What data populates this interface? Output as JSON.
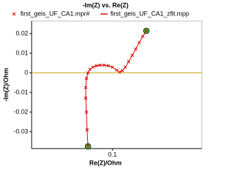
{
  "chart_data": {
    "type": "scatter",
    "title": "-Im(Z) vs. Re(Z)",
    "x_label": "Re(Z)/Ohm",
    "y_label": "-Im(Z)/Ohm",
    "xlim": [
      0.0525,
      0.1525
    ],
    "ylim": [
      -0.0386,
      0.0264
    ],
    "xticks": [
      0.1
    ],
    "yticks": [
      0.02,
      0.01,
      0,
      -0.01,
      -0.02,
      -0.03
    ],
    "zero_line_color": "#c8a000",
    "series": [
      {
        "name": "first_geis_UF_CA1.mpr#",
        "color": "#e00000",
        "marker": "x",
        "x": [
          0.0856,
          0.0851,
          0.0847,
          0.0843,
          0.0843,
          0.0847,
          0.0856,
          0.0868,
          0.0885,
          0.0905,
          0.0926,
          0.0951,
          0.0975,
          0.1,
          0.1025,
          0.1042,
          0.1058,
          0.1075,
          0.1095,
          0.1116,
          0.1137,
          0.1157,
          0.1178,
          0.1199
        ],
        "y": [
          -0.0375,
          -0.029,
          -0.02,
          -0.0129,
          -0.0075,
          -0.0029,
          0,
          0.0018,
          0.0029,
          0.0036,
          0.0039,
          0.0039,
          0.0036,
          0.0029,
          0.0014,
          0.0004,
          0.0011,
          0.0029,
          0.0057,
          0.0089,
          0.0121,
          0.0154,
          0.0186,
          0.0214
        ]
      },
      {
        "name": "first_geis_UF_CA1_zfit.mpp",
        "color": "#e00000",
        "marker": "line",
        "x": [
          0.0856,
          0.0851,
          0.0847,
          0.0843,
          0.0843,
          0.0847,
          0.0856,
          0.0868,
          0.0885,
          0.0905,
          0.0926,
          0.0951,
          0.0975,
          0.1,
          0.1025,
          0.1042,
          0.1058,
          0.1075,
          0.1095,
          0.1116,
          0.1137,
          0.1157,
          0.1178,
          0.1199
        ],
        "y": [
          -0.0375,
          -0.029,
          -0.02,
          -0.0129,
          -0.0075,
          -0.0029,
          0,
          0.0018,
          0.0029,
          0.0036,
          0.0039,
          0.0039,
          0.0036,
          0.0029,
          0.0014,
          0.0004,
          0.0011,
          0.0029,
          0.0057,
          0.0089,
          0.0121,
          0.0154,
          0.0186,
          0.0214
        ]
      }
    ]
  }
}
